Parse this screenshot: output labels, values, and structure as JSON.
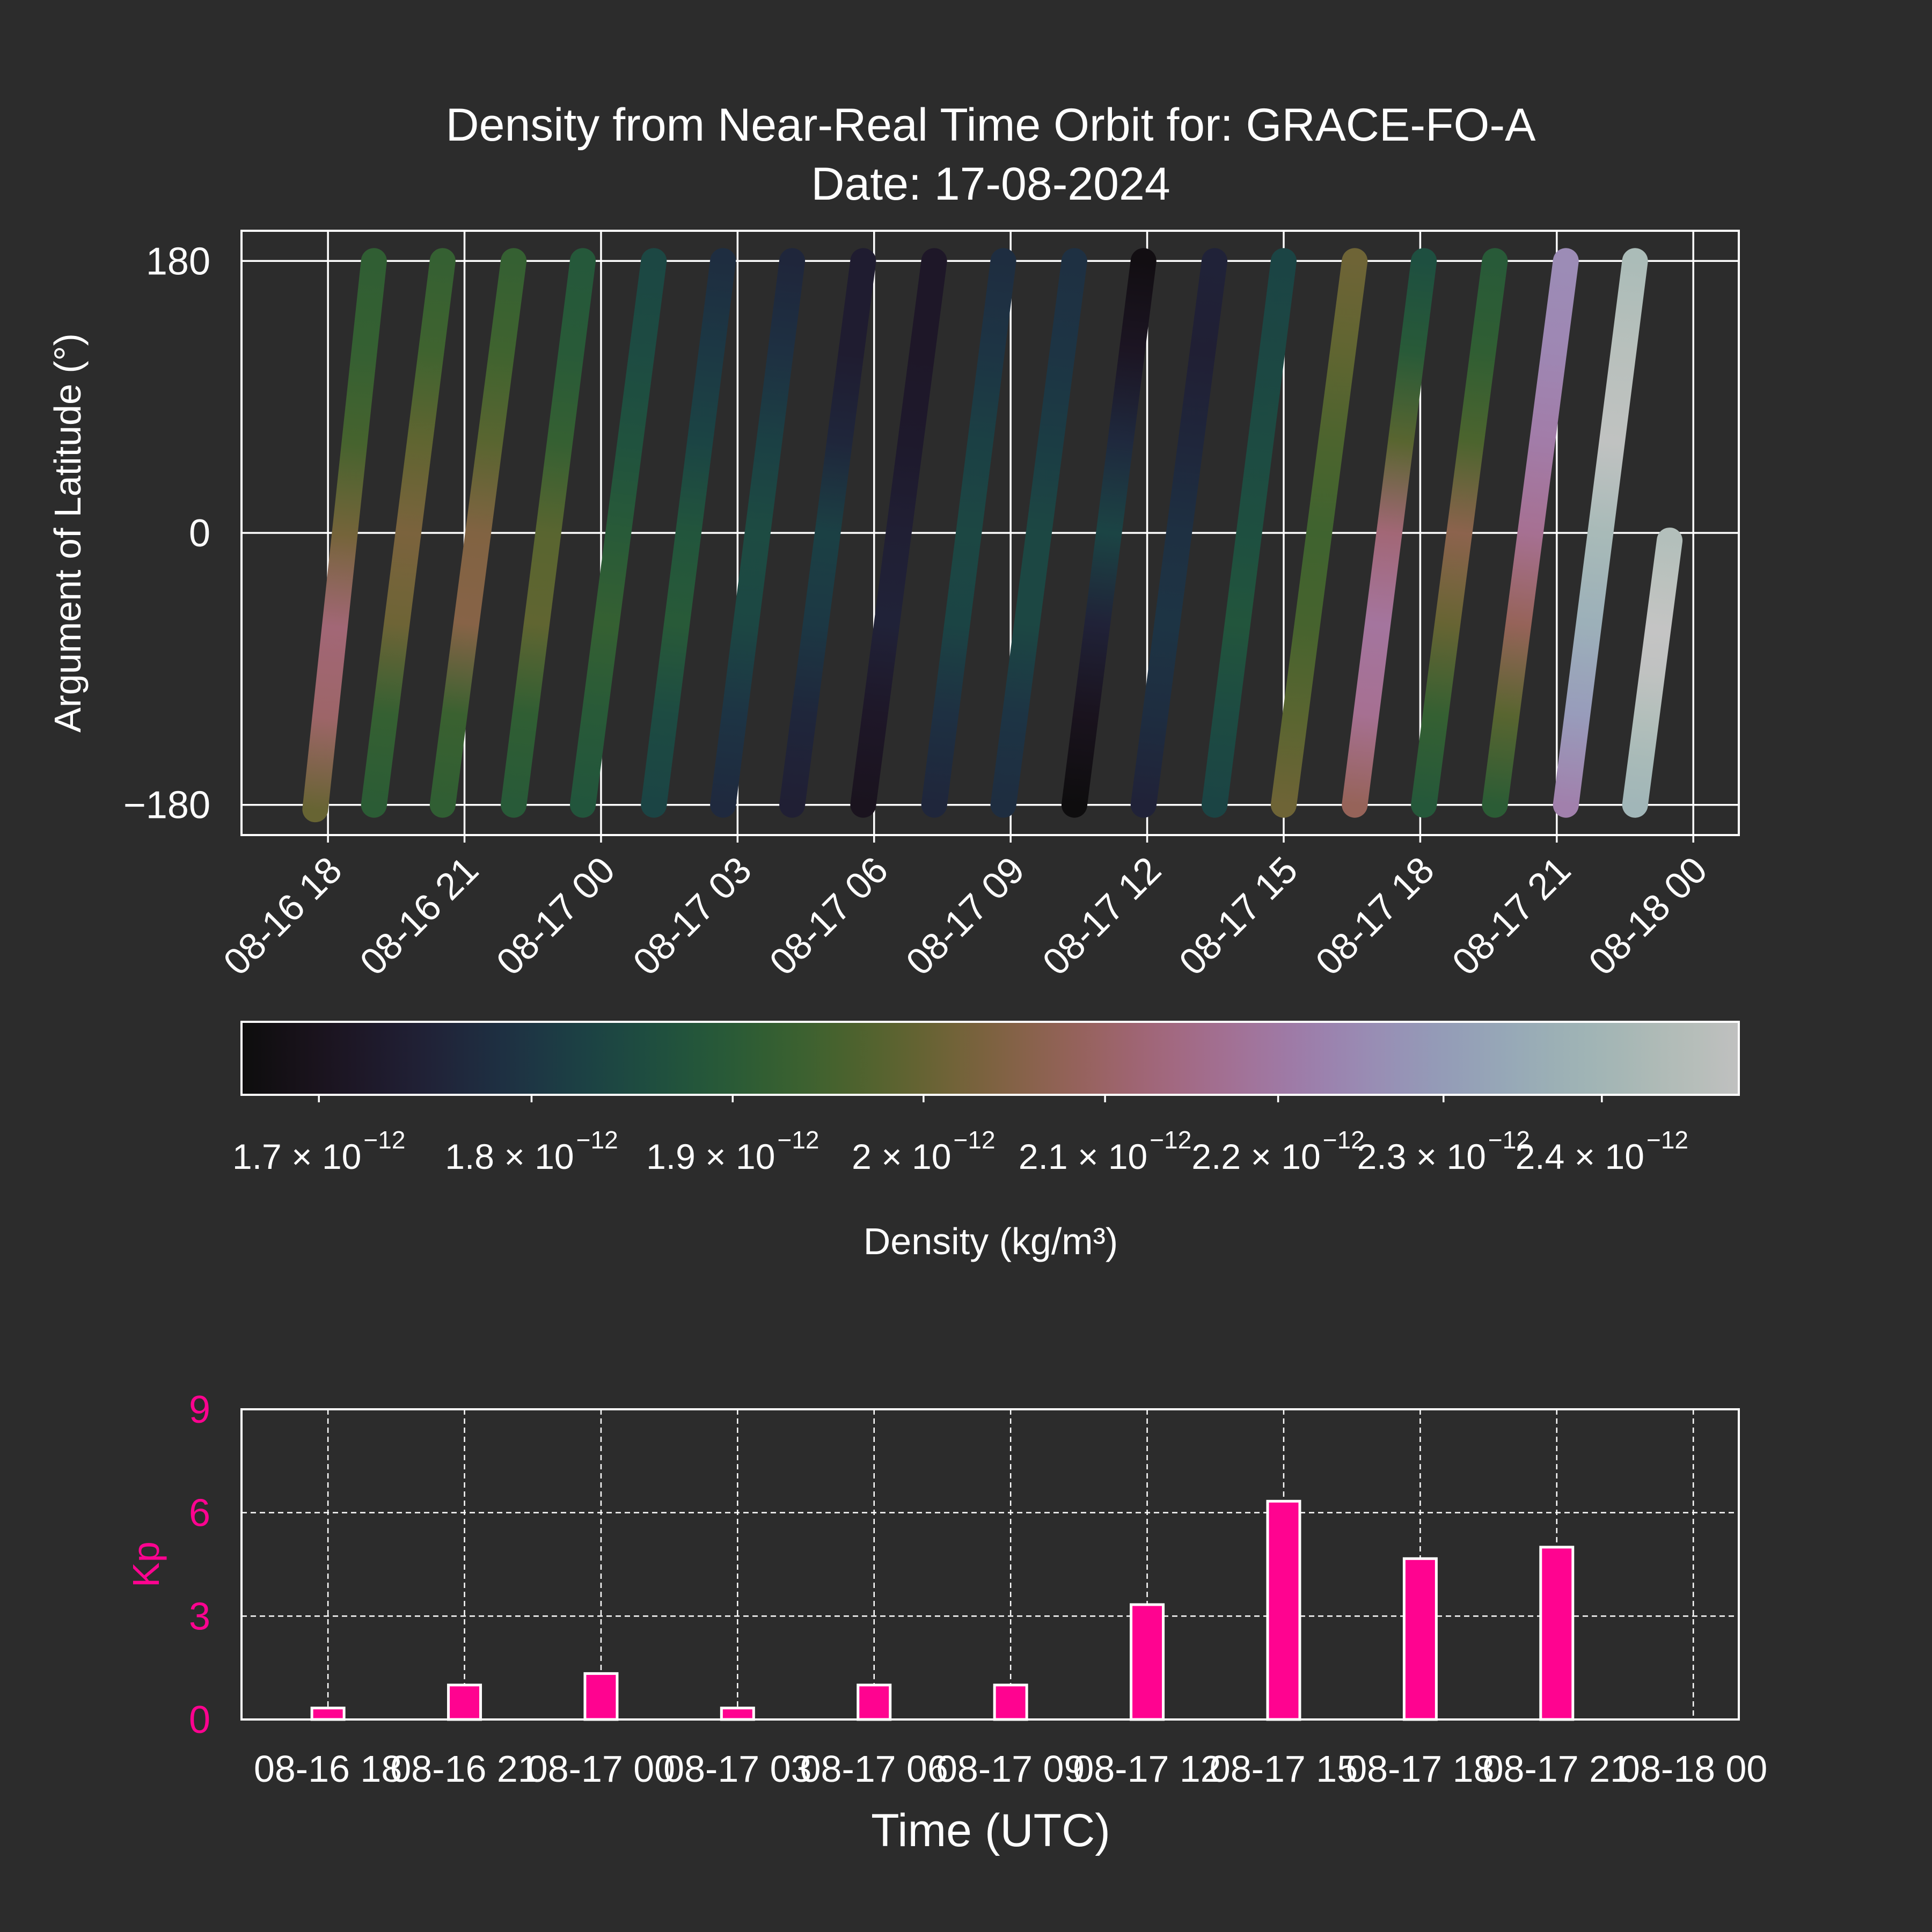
{
  "chart_data": [
    {
      "type": "scatter",
      "title_line1": "Density from Near-Real Time Orbit for: GRACE-FO-A",
      "title_line2": "Date: 17-08-2024",
      "ylabel": "Argument of Latitude (°)",
      "ylim": [
        -200,
        200
      ],
      "yticks": [
        180,
        0,
        -180
      ],
      "ytick_labels": [
        "180",
        "0",
        "−180"
      ],
      "xlim_hours": [
        -7.9,
        25.0
      ],
      "xticks_hours": [
        -6,
        -3,
        0,
        3,
        6,
        9,
        12,
        15,
        18,
        21,
        24
      ],
      "xtick_labels": [
        "08-16 18",
        "08-16 21",
        "08-17 00",
        "08-17 03",
        "08-17 06",
        "08-17 09",
        "08-17 12",
        "08-17 15",
        "08-17 18",
        "08-17 21",
        "08-18 00"
      ],
      "grid": true,
      "colormap": "cubehelix",
      "colorbar": {
        "label": "Density (kg/m³)",
        "range": [
          1.665e-12,
          2.49e-12
        ],
        "ticks": [
          1.7e-12,
          1.8e-12,
          1.9e-12,
          2e-12,
          2.1e-12,
          2.2e-12,
          2.3e-12,
          2.4e-12
        ],
        "tick_mantissas": [
          "1.7 × 10",
          "1.8 × 10",
          "1.9 × 10",
          "2 × 10",
          "2.1 × 10",
          "2.2 × 10",
          "2.3 × 10",
          "2.4 × 10"
        ],
        "tick_exponent": "−12"
      },
      "passes": [
        {
          "t_start": -6.28,
          "t_end": -4.99,
          "u_start": -183,
          "u_end": 180,
          "density_stops": [
            2.04e-12,
            2.14e-12,
            2.16e-12,
            2.06e-12,
            1.99e-12,
            1.96e-12,
            1.95e-12
          ]
        },
        {
          "t_start": -4.99,
          "t_end": -3.48,
          "u_start": -180,
          "u_end": 180,
          "density_stops": [
            1.94e-12,
            1.96e-12,
            2.05e-12,
            2.07e-12,
            2.03e-12,
            1.98e-12,
            1.96e-12
          ]
        },
        {
          "t_start": -3.48,
          "t_end": -1.92,
          "u_start": -180,
          "u_end": 180,
          "density_stops": [
            1.95e-12,
            1.97e-12,
            2.09e-12,
            2.08e-12,
            2.02e-12,
            1.98e-12,
            1.96e-12
          ]
        },
        {
          "t_start": -1.92,
          "t_end": -0.4,
          "u_start": -180,
          "u_end": 180,
          "density_stops": [
            1.93e-12,
            1.95e-12,
            2.03e-12,
            2.02e-12,
            1.96e-12,
            1.93e-12,
            1.92e-12
          ]
        },
        {
          "t_start": -0.4,
          "t_end": 1.16,
          "u_start": -180,
          "u_end": 180,
          "density_stops": [
            1.91e-12,
            1.93e-12,
            1.96e-12,
            1.93e-12,
            1.9e-12,
            1.88e-12,
            1.87e-12
          ]
        },
        {
          "t_start": 1.16,
          "t_end": 2.68,
          "u_start": -180,
          "u_end": 180,
          "density_stops": [
            1.86e-12,
            1.88e-12,
            1.93e-12,
            1.91e-12,
            1.86e-12,
            1.83e-12,
            1.8e-12
          ]
        },
        {
          "t_start": 2.68,
          "t_end": 4.2,
          "u_start": -180,
          "u_end": 180,
          "density_stops": [
            1.79e-12,
            1.82e-12,
            1.87e-12,
            1.88e-12,
            1.85e-12,
            1.81e-12,
            1.78e-12
          ]
        },
        {
          "t_start": 4.2,
          "t_end": 5.76,
          "u_start": -180,
          "u_end": 180,
          "density_stops": [
            1.76e-12,
            1.78e-12,
            1.83e-12,
            1.85e-12,
            1.78e-12,
            1.75e-12,
            1.75e-12
          ]
        },
        {
          "t_start": 5.76,
          "t_end": 7.32,
          "u_start": -180,
          "u_end": 180,
          "density_stops": [
            1.71e-12,
            1.73e-12,
            1.77e-12,
            1.76e-12,
            1.74e-12,
            1.73e-12,
            1.73e-12
          ]
        },
        {
          "t_start": 7.32,
          "t_end": 8.84,
          "u_start": -180,
          "u_end": 180,
          "density_stops": [
            1.78e-12,
            1.81e-12,
            1.86e-12,
            1.87e-12,
            1.85e-12,
            1.82e-12,
            1.8e-12
          ]
        },
        {
          "t_start": 8.84,
          "t_end": 10.4,
          "u_start": -180,
          "u_end": 180,
          "density_stops": [
            1.8e-12,
            1.82e-12,
            1.87e-12,
            1.87e-12,
            1.84e-12,
            1.82e-12,
            1.81e-12
          ]
        },
        {
          "t_start": 10.4,
          "t_end": 11.92,
          "u_start": -180,
          "u_end": 180,
          "density_stops": [
            1.67e-12,
            1.71e-12,
            1.77e-12,
            1.86e-12,
            1.79e-12,
            1.72e-12,
            1.68e-12
          ]
        },
        {
          "t_start": 11.92,
          "t_end": 13.48,
          "u_start": -180,
          "u_end": 180,
          "density_stops": [
            1.77e-12,
            1.8e-12,
            1.82e-12,
            1.81e-12,
            1.78e-12,
            1.76e-12,
            1.77e-12
          ]
        },
        {
          "t_start": 13.48,
          "t_end": 15.0,
          "u_start": -180,
          "u_end": 180,
          "density_stops": [
            1.86e-12,
            1.88e-12,
            1.91e-12,
            1.89e-12,
            1.88e-12,
            1.87e-12,
            1.86e-12
          ]
        },
        {
          "t_start": 15.0,
          "t_end": 16.56,
          "u_start": -180,
          "u_end": 180,
          "density_stops": [
            2.05e-12,
            2.02e-12,
            1.99e-12,
            1.98e-12,
            2e-12,
            2.03e-12,
            2.05e-12
          ]
        },
        {
          "t_start": 16.56,
          "t_end": 18.08,
          "u_start": -180,
          "u_end": 180,
          "density_stops": [
            2.12e-12,
            2.2e-12,
            2.22e-12,
            2.16e-12,
            2.02e-12,
            1.93e-12,
            1.89e-12
          ]
        },
        {
          "t_start": 18.08,
          "t_end": 19.64,
          "u_start": -180,
          "u_end": 180,
          "density_stops": [
            1.92e-12,
            1.96e-12,
            2.04e-12,
            2.1e-12,
            2e-12,
            1.95e-12,
            1.93e-12
          ]
        },
        {
          "t_start": 19.64,
          "t_end": 21.2,
          "u_start": -180,
          "u_end": 180,
          "density_stops": [
            1.94e-12,
            2.02e-12,
            2.12e-12,
            2.2e-12,
            2.24e-12,
            2.27e-12,
            2.28e-12
          ]
        },
        {
          "t_start": 21.2,
          "t_end": 22.72,
          "u_start": -180,
          "u_end": 180,
          "density_stops": [
            2.25e-12,
            2.32e-12,
            2.38e-12,
            2.42e-12,
            2.48e-12,
            2.46e-12,
            2.43e-12
          ]
        },
        {
          "t_start": 22.72,
          "t_end": 23.48,
          "u_start": -180,
          "u_end": -5,
          "density_stops": [
            2.4e-12,
            2.42e-12,
            2.45e-12,
            2.48e-12,
            2.49e-12,
            2.47e-12,
            2.45e-12
          ]
        }
      ]
    },
    {
      "type": "bar",
      "ylabel": "Kp",
      "xlabel": "Time (UTC)",
      "ylim": [
        0,
        9
      ],
      "yticks": [
        0,
        3,
        6,
        9
      ],
      "xlim_hours": [
        -7.9,
        25.0
      ],
      "xticks_hours": [
        -6,
        -3,
        0,
        3,
        6,
        9,
        12,
        15,
        18,
        21,
        24
      ],
      "xtick_labels": [
        "08-16 18",
        "08-16 21",
        "08-17 00",
        "08-17 03",
        "08-17 06",
        "08-17 09",
        "08-17 12",
        "08-17 15",
        "08-17 18",
        "08-17 21",
        "08-18 00"
      ],
      "categories_hours": [
        -6,
        -3,
        0,
        3,
        6,
        9,
        12,
        15,
        18,
        21
      ],
      "values": [
        0.333,
        1.0,
        1.333,
        0.333,
        1.0,
        1.0,
        3.333,
        6.333,
        4.667,
        5.0
      ],
      "bar_color": "#ff0390",
      "label_color": "#ff0390"
    }
  ],
  "colors": {
    "background": "#2c2c2c",
    "axes": "#ffffff",
    "kp": "#ff0390"
  }
}
